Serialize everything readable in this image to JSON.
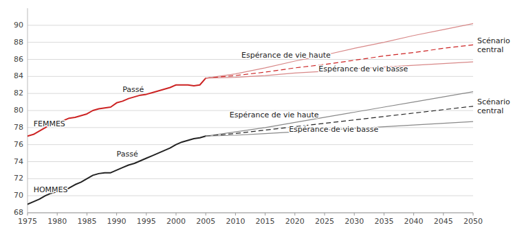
{
  "chart_data": {
    "type": "line",
    "xlim": [
      1975,
      2050
    ],
    "ylim": [
      68,
      92
    ],
    "xticks": [
      1975,
      1980,
      1985,
      1990,
      1995,
      2000,
      2005,
      2010,
      2015,
      2020,
      2025,
      2030,
      2035,
      2040,
      2045,
      2050
    ],
    "yticks": [
      68,
      70,
      72,
      74,
      76,
      78,
      80,
      82,
      84,
      86,
      88,
      90
    ],
    "grid": true,
    "series": [
      {
        "color": "#cc2222",
        "line_style": "solid",
        "x": [
          1975,
          1976,
          1977,
          1978,
          1979,
          1980,
          1981,
          1982,
          1983,
          1984,
          1985,
          1986,
          1987,
          1988,
          1989,
          1990,
          1991,
          1992,
          1993,
          1994,
          1995,
          1996,
          1997,
          1998,
          1999,
          2000,
          2001,
          2002,
          2003,
          2004,
          2005
        ],
        "values": [
          77.0,
          77.2,
          77.6,
          78.0,
          78.4,
          78.5,
          78.8,
          79.1,
          79.2,
          79.4,
          79.6,
          80.0,
          80.2,
          80.3,
          80.4,
          80.9,
          81.1,
          81.4,
          81.6,
          81.8,
          81.9,
          82.1,
          82.3,
          82.5,
          82.7,
          83.0,
          83.0,
          83.0,
          82.9,
          83.0,
          83.8
        ]
      },
      {
        "color": "#222222",
        "line_style": "solid",
        "x": [
          1975,
          1976,
          1977,
          1978,
          1979,
          1980,
          1981,
          1982,
          1983,
          1984,
          1985,
          1986,
          1987,
          1988,
          1989,
          1990,
          1991,
          1992,
          1993,
          1994,
          1995,
          1996,
          1997,
          1998,
          1999,
          2000,
          2001,
          2002,
          2003,
          2004,
          2005
        ],
        "values": [
          69.0,
          69.3,
          69.6,
          70.0,
          70.3,
          70.5,
          70.6,
          70.9,
          71.3,
          71.6,
          72.0,
          72.4,
          72.6,
          72.7,
          72.7,
          73.0,
          73.3,
          73.6,
          73.8,
          74.1,
          74.4,
          74.7,
          75.0,
          75.3,
          75.6,
          76.0,
          76.3,
          76.5,
          76.7,
          76.8,
          77.0
        ]
      },
      {
        "color": "#d88888",
        "line_style": "solid",
        "x": [
          2005,
          2010,
          2015,
          2020,
          2025,
          2030,
          2035,
          2040,
          2045,
          2050
        ],
        "values": [
          83.8,
          84.3,
          85.0,
          85.8,
          86.5,
          87.3,
          88.0,
          88.8,
          89.5,
          90.2
        ]
      },
      {
        "color": "#cc2222",
        "line_style": "dashed",
        "x": [
          2005,
          2010,
          2015,
          2020,
          2025,
          2030,
          2035,
          2040,
          2045,
          2050
        ],
        "values": [
          83.8,
          84.1,
          84.5,
          85.0,
          85.4,
          85.9,
          86.4,
          86.8,
          87.3,
          87.7
        ]
      },
      {
        "color": "#d88888",
        "line_style": "solid",
        "x": [
          2005,
          2010,
          2015,
          2020,
          2025,
          2030,
          2035,
          2040,
          2045,
          2050
        ],
        "values": [
          83.8,
          83.9,
          84.1,
          84.4,
          84.6,
          84.9,
          85.1,
          85.3,
          85.5,
          85.7
        ]
      },
      {
        "color": "#888888",
        "line_style": "solid",
        "x": [
          2005,
          2010,
          2015,
          2020,
          2025,
          2030,
          2035,
          2040,
          2045,
          2050
        ],
        "values": [
          77.0,
          77.5,
          78.0,
          78.6,
          79.2,
          79.8,
          80.4,
          81.0,
          81.6,
          82.2
        ]
      },
      {
        "color": "#222222",
        "line_style": "dashed",
        "x": [
          2005,
          2010,
          2015,
          2020,
          2025,
          2030,
          2035,
          2040,
          2045,
          2050
        ],
        "values": [
          77.0,
          77.3,
          77.7,
          78.1,
          78.5,
          78.9,
          79.3,
          79.7,
          80.1,
          80.5
        ]
      },
      {
        "color": "#888888",
        "line_style": "solid",
        "x": [
          2005,
          2010,
          2015,
          2020,
          2025,
          2030,
          2035,
          2040,
          2045,
          2050
        ],
        "values": [
          77.0,
          77.1,
          77.3,
          77.5,
          77.7,
          77.9,
          78.1,
          78.3,
          78.5,
          78.7
        ]
      }
    ],
    "annotations": [
      {
        "text": "FEMMES",
        "x": 1976,
        "y": 78.5
      },
      {
        "text": "HOMMES",
        "x": 1976,
        "y": 70.7
      },
      {
        "text": "Passé",
        "x": 1991,
        "y": 82.5
      },
      {
        "text": "Passé",
        "x": 1990,
        "y": 74.9
      },
      {
        "text": "Espérance de vie haute",
        "x": 2011,
        "y": 86.5
      },
      {
        "text": "Espérance de vie basse",
        "x": 2024,
        "y": 84.9
      },
      {
        "text": "Espérance de vie haute",
        "x": 2009,
        "y": 79.5
      },
      {
        "text": "Espérance de vie basse",
        "x": 2019,
        "y": 77.8
      },
      {
        "text": "Scénario\ncentral",
        "x": 2050,
        "y": 87.7
      },
      {
        "text": "Scénario\ncentral",
        "x": 2050,
        "y": 80.5
      }
    ]
  }
}
